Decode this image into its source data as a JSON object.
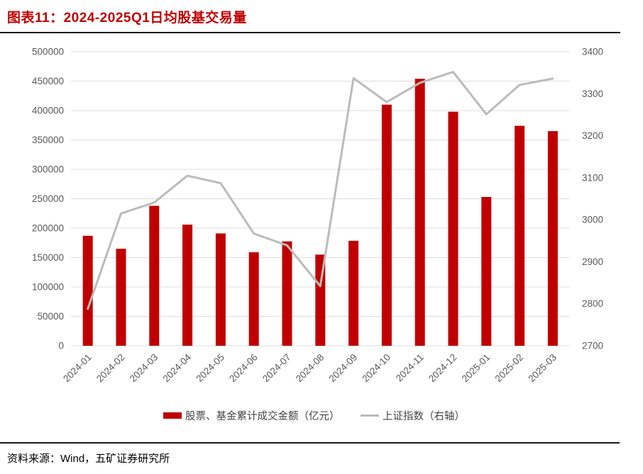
{
  "figure": {
    "title": "图表11：2024-2025Q1日均股基交易量",
    "source": "资料来源：Wind，五矿证券研究所"
  },
  "colors": {
    "title": "#C00000",
    "bar": "#C00000",
    "line": "#BBBBBB",
    "grid": "#DCDCDC",
    "axis_text": "#595959",
    "legend_text": "#444444",
    "rule": "#1A1A1A"
  },
  "chart_data": {
    "type": "combo",
    "title": "",
    "categories": [
      "2024-01",
      "2024-02",
      "2024-03",
      "2024-04",
      "2024-05",
      "2024-06",
      "2024-07",
      "2024-08",
      "2024-09",
      "2024-10",
      "2024-11",
      "2024-12",
      "2025-01",
      "2025-02",
      "2025-03"
    ],
    "series": [
      {
        "name": "股票、基金累计成交金额（亿元）",
        "type": "bar",
        "axis": "left",
        "values": [
          187000,
          165000,
          238000,
          206000,
          191000,
          159000,
          177500,
          155000,
          178500,
          410000,
          454000,
          398000,
          253000,
          374000,
          365000
        ]
      },
      {
        "name": "上证指数（右轴）",
        "type": "line",
        "axis": "right",
        "values": [
          2788,
          3015,
          3041,
          3105,
          3087,
          2967,
          2939,
          2842,
          3337,
          3280,
          3326,
          3352,
          3251,
          3321,
          3336
        ]
      }
    ],
    "left_axis": {
      "min": 0,
      "max": 500000,
      "step": 50000,
      "ticks": [
        "500000",
        "450000",
        "400000",
        "350000",
        "300000",
        "250000",
        "200000",
        "150000",
        "100000",
        "50000",
        "0"
      ]
    },
    "right_axis": {
      "min": 2700,
      "max": 3400,
      "step": 100,
      "ticks": [
        "3400",
        "3300",
        "3200",
        "3100",
        "3000",
        "2900",
        "2800",
        "2700"
      ]
    },
    "grid": true,
    "legend_position": "bottom"
  }
}
